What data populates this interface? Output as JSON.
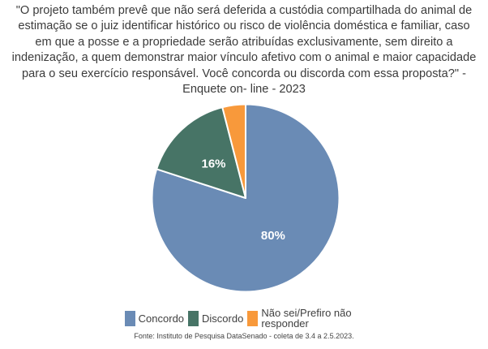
{
  "chart_data": {
    "type": "pie",
    "title": "\"O projeto também prevê que não será deferida a custódia compartilhada do animal de estimação se o juiz identificar histórico ou risco de violência doméstica e familiar, caso em que a posse e a propriedade serão atribuídas exclusivamente, sem direito a indenização, a quem demonstrar maior vínculo afetivo com o animal e maior capacidade para o seu exercício responsável. Você concorda ou discorda com essa proposta?\" - Enquete on- line - 2023",
    "start_angle_deg": 0,
    "direction": "clockwise",
    "legend_position": "bottom",
    "slices": [
      {
        "label": "Concordo",
        "value": 80,
        "display": "80%",
        "color": "#6A8BB5"
      },
      {
        "label": "Discordo",
        "value": 16,
        "display": "16%",
        "color": "#477466"
      },
      {
        "label": "Não sei/Prefiro não responder",
        "value": 4,
        "display": "",
        "color": "#F8993B"
      }
    ],
    "slice_border_color": "#ffffff",
    "source": "Fonte: Instituto de Pesquisa DataSenado - coleta de 3.4 a 2.5.2023."
  }
}
